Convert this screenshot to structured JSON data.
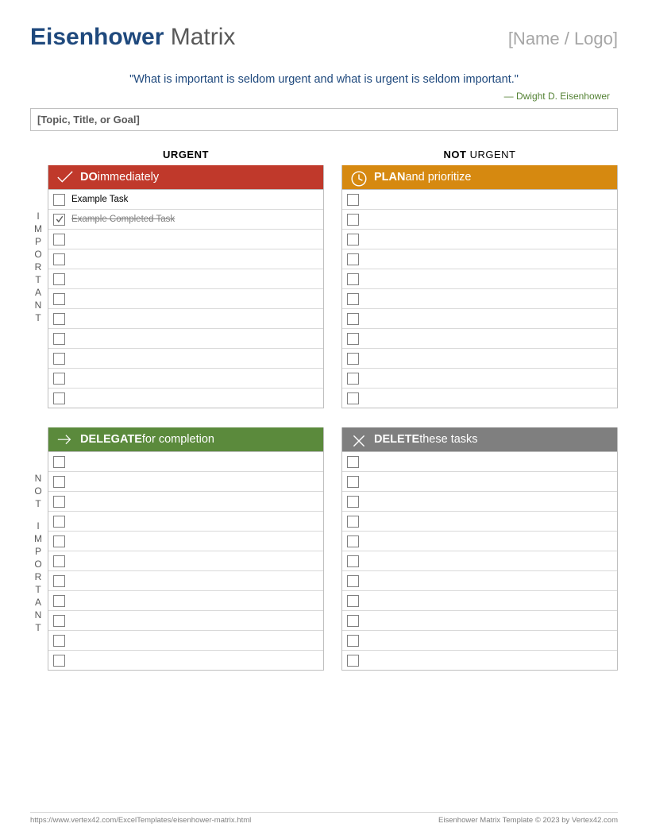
{
  "colors": {
    "title_bold": "#1f497d",
    "title_rest": "#595959",
    "logo": "#a6a6a6",
    "quote": "#1f497d",
    "attribution": "#548235",
    "topic_text": "#595959",
    "do_header_bg": "#c0392b",
    "plan_header_bg": "#d68910",
    "delegate_header_bg": "#5b8a3c",
    "delete_header_bg": "#7f7f7f",
    "completed_text": "#808080",
    "checkmark": "#595959",
    "footer_text": "#808080",
    "vlabel_text": "#595959"
  },
  "header": {
    "title_bold": "Eisenhower",
    "title_rest": " Matrix",
    "logo_placeholder": "[Name / Logo]"
  },
  "quote": "\"What is important is seldom urgent and what is urgent is seldom important.\"",
  "attribution": "— Dwight D. Eisenhower",
  "topic_placeholder": "[Topic, Title, or Goal]",
  "columns": {
    "urgent_bold": "URGENT",
    "not_urgent_prefix": "NOT ",
    "not_urgent_rest": "URGENT"
  },
  "row_labels": {
    "important": "IMPORTANT",
    "not_important_1": "NOT",
    "not_important_2": "IMPORTANT"
  },
  "quadrants": {
    "do": {
      "bold": "DO",
      "rest": " immediately"
    },
    "plan": {
      "bold": "PLAN",
      "rest": " and prioritize"
    },
    "delegate": {
      "bold": "DELEGATE",
      "rest": " for completion"
    },
    "delete": {
      "bold": "DELETE",
      "rest": " these tasks"
    }
  },
  "tasks": {
    "do": [
      {
        "text": "Example Task",
        "checked": false,
        "completed": false
      },
      {
        "text": "Example Completed Task",
        "checked": true,
        "completed": true
      },
      {},
      {},
      {},
      {},
      {},
      {},
      {},
      {},
      {}
    ],
    "plan": [
      {},
      {},
      {},
      {},
      {},
      {},
      {},
      {},
      {},
      {},
      {}
    ],
    "delegate": [
      {},
      {},
      {},
      {},
      {},
      {},
      {},
      {},
      {},
      {},
      {}
    ],
    "delete": [
      {},
      {},
      {},
      {},
      {},
      {},
      {},
      {},
      {},
      {},
      {}
    ]
  },
  "rows_per_quadrant": 11,
  "footer": {
    "url": "https://www.vertex42.com/ExcelTemplates/eisenhower-matrix.html",
    "copyright": "Eisenhower Matrix Template © 2023 by Vertex42.com"
  }
}
